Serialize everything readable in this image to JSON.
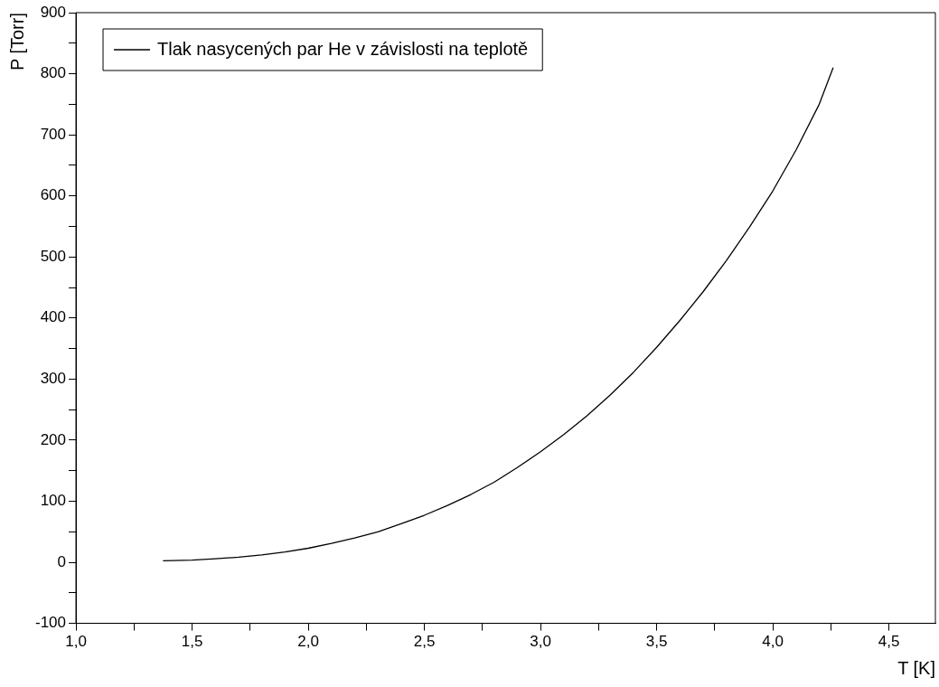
{
  "chart_data": {
    "type": "line",
    "xlabel": "T [K]",
    "ylabel": "P [Torr]",
    "legend": "top left",
    "grid": false,
    "marker": "none",
    "line_style": "solid",
    "xlim": [
      1.0,
      4.7
    ],
    "ylim": [
      -100,
      900
    ],
    "xticks": [
      {
        "value": 1.0,
        "label": "1,0"
      },
      {
        "value": 1.25,
        "label": null
      },
      {
        "value": 1.5,
        "label": "1,5"
      },
      {
        "value": 1.75,
        "label": null
      },
      {
        "value": 2.0,
        "label": "2,0"
      },
      {
        "value": 2.25,
        "label": null
      },
      {
        "value": 2.5,
        "label": "2,5"
      },
      {
        "value": 2.75,
        "label": null
      },
      {
        "value": 3.0,
        "label": "3,0"
      },
      {
        "value": 3.25,
        "label": null
      },
      {
        "value": 3.5,
        "label": "3,5"
      },
      {
        "value": 3.75,
        "label": null
      },
      {
        "value": 4.0,
        "label": "4,0"
      },
      {
        "value": 4.25,
        "label": null
      },
      {
        "value": 4.5,
        "label": "4,5"
      }
    ],
    "yticks": [
      -100,
      {
        "value": -50,
        "label": null
      },
      0,
      {
        "value": 50,
        "label": null
      },
      100,
      {
        "value": 150,
        "label": null
      },
      200,
      {
        "value": 250,
        "label": null
      },
      300,
      {
        "value": 350,
        "label": null
      },
      400,
      {
        "value": 450,
        "label": null
      },
      500,
      {
        "value": 550,
        "label": null
      },
      600,
      {
        "value": 650,
        "label": null
      },
      700,
      {
        "value": 750,
        "label": null
      },
      800,
      {
        "value": 850,
        "label": null
      },
      900
    ],
    "series": [
      {
        "name": "Tlak nasycených par He v závislosti na teplotě",
        "color": "#000000",
        "x": [
          1.375,
          1.5,
          1.6,
          1.7,
          1.8,
          1.9,
          2.0,
          2.1,
          2.2,
          2.3,
          2.4,
          2.5,
          2.6,
          2.7,
          2.8,
          2.9,
          3.0,
          3.1,
          3.2,
          3.3,
          3.4,
          3.5,
          3.6,
          3.7,
          3.8,
          3.9,
          4.0,
          4.1,
          4.2,
          4.26
        ],
        "values": [
          2.5,
          3.6,
          5.7,
          8.4,
          12,
          17,
          23,
          31,
          40,
          50,
          63,
          77,
          93,
          111,
          131,
          155,
          181,
          209,
          240,
          274,
          311,
          352,
          396,
          443,
          494,
          549,
          608,
          675,
          750,
          810
        ]
      }
    ]
  }
}
